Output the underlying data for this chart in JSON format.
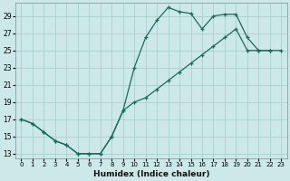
{
  "xlabel": "Humidex (Indice chaleur)",
  "bg_color": "#cce8e8",
  "grid_color": "#aacfcf",
  "line_color": "#1a6b5a",
  "xlim": [
    -0.5,
    23.5
  ],
  "ylim": [
    12.5,
    30.5
  ],
  "yticks": [
    13,
    15,
    17,
    19,
    21,
    23,
    25,
    27,
    29
  ],
  "xticks": [
    0,
    1,
    2,
    3,
    4,
    5,
    6,
    7,
    8,
    9,
    10,
    11,
    12,
    13,
    14,
    15,
    16,
    17,
    18,
    19,
    20,
    21,
    22,
    23
  ],
  "upper_x": [
    0,
    1,
    2,
    3,
    4,
    5,
    6,
    7,
    8,
    9,
    10,
    11,
    12,
    13,
    14,
    15,
    16,
    17,
    18,
    19,
    20,
    21,
    22
  ],
  "upper_y": [
    17.0,
    16.5,
    15.5,
    14.5,
    14.0,
    13.0,
    13.0,
    13.0,
    15.0,
    18.0,
    23.0,
    26.5,
    28.5,
    30.0,
    29.5,
    29.3,
    27.5,
    29.0,
    29.2,
    29.2,
    26.5,
    25.0,
    25.0
  ],
  "lower_x": [
    0,
    1,
    2,
    3,
    4,
    5,
    6,
    7,
    8,
    9,
    10,
    11,
    12,
    13,
    14,
    15,
    16,
    17,
    18,
    19,
    20,
    21,
    22,
    23
  ],
  "lower_y": [
    17.0,
    16.5,
    15.5,
    14.5,
    14.0,
    13.0,
    13.0,
    13.0,
    15.0,
    18.0,
    19.0,
    19.5,
    20.5,
    21.5,
    22.5,
    23.5,
    24.5,
    25.5,
    26.5,
    27.5,
    25.0,
    25.0,
    25.0,
    25.0
  ]
}
